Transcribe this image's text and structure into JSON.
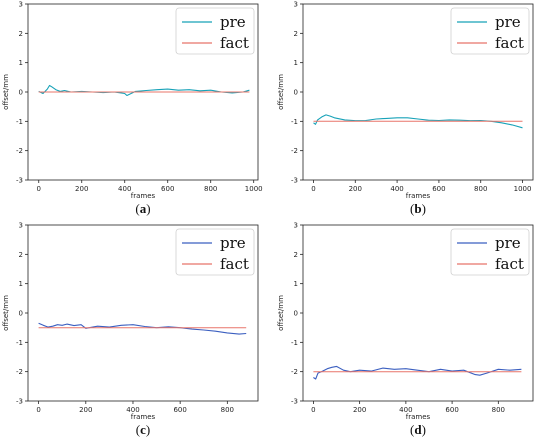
{
  "chart_data": [
    {
      "type": "line",
      "caption_letter": "a",
      "xlabel": "frames",
      "ylabel": "offset/mm",
      "xlim": [
        -50,
        1020
      ],
      "ylim": [
        -3,
        3
      ],
      "xticks": [
        0,
        200,
        400,
        600,
        800,
        1000
      ],
      "yticks": [
        -3,
        -2,
        -1,
        0,
        1,
        2,
        3
      ],
      "legend_position": "top-right",
      "series": [
        {
          "name": "pre",
          "color": "#17a2b8",
          "x": [
            0,
            20,
            40,
            50,
            60,
            80,
            100,
            120,
            150,
            200,
            250,
            300,
            350,
            400,
            410,
            450,
            500,
            550,
            600,
            650,
            700,
            750,
            800,
            850,
            900,
            950,
            980
          ],
          "y": [
            0.02,
            -0.05,
            0.1,
            0.22,
            0.18,
            0.08,
            0.02,
            0.05,
            0.0,
            0.02,
            0.0,
            -0.02,
            0.0,
            -0.05,
            -0.12,
            0.02,
            0.05,
            0.08,
            0.1,
            0.06,
            0.08,
            0.04,
            0.06,
            0.0,
            -0.03,
            0.0,
            0.06
          ]
        },
        {
          "name": "fact",
          "color": "#e8756a",
          "x": [
            0,
            980
          ],
          "y": [
            0,
            0
          ]
        }
      ]
    },
    {
      "type": "line",
      "caption_letter": "b",
      "xlabel": "frames",
      "ylabel": "offset/mm",
      "xlim": [
        -50,
        1050
      ],
      "ylim": [
        -3,
        3
      ],
      "xticks": [
        0,
        200,
        400,
        600,
        800,
        1000
      ],
      "yticks": [
        -3,
        -2,
        -1,
        0,
        1,
        2,
        3
      ],
      "legend_position": "top-right",
      "series": [
        {
          "name": "pre",
          "color": "#17a2b8",
          "x": [
            0,
            10,
            20,
            40,
            60,
            80,
            100,
            150,
            200,
            250,
            300,
            350,
            400,
            450,
            500,
            550,
            600,
            650,
            700,
            750,
            800,
            850,
            900,
            950,
            1000
          ],
          "y": [
            -1.05,
            -1.1,
            -0.95,
            -0.85,
            -0.78,
            -0.82,
            -0.88,
            -0.95,
            -0.98,
            -0.97,
            -0.92,
            -0.9,
            -0.88,
            -0.88,
            -0.92,
            -0.96,
            -0.97,
            -0.95,
            -0.96,
            -0.98,
            -0.97,
            -1.0,
            -1.05,
            -1.12,
            -1.22
          ]
        },
        {
          "name": "fact",
          "color": "#e8756a",
          "x": [
            0,
            1000
          ],
          "y": [
            -1,
            -1
          ]
        }
      ]
    },
    {
      "type": "line",
      "caption_letter": "c",
      "xlabel": "frames",
      "ylabel": "offset/mm",
      "xlim": [
        -45,
        930
      ],
      "ylim": [
        -3,
        3
      ],
      "xticks": [
        0,
        200,
        400,
        600,
        800
      ],
      "yticks": [
        -3,
        -2,
        -1,
        0,
        1,
        2,
        3
      ],
      "legend_position": "top-right",
      "series": [
        {
          "name": "pre",
          "color": "#3b5fc0",
          "x": [
            0,
            20,
            40,
            60,
            80,
            100,
            120,
            150,
            180,
            200,
            250,
            300,
            350,
            400,
            450,
            500,
            550,
            600,
            650,
            700,
            750,
            800,
            850,
            880
          ],
          "y": [
            -0.35,
            -0.42,
            -0.48,
            -0.45,
            -0.4,
            -0.42,
            -0.38,
            -0.43,
            -0.4,
            -0.52,
            -0.45,
            -0.48,
            -0.42,
            -0.4,
            -0.46,
            -0.5,
            -0.47,
            -0.5,
            -0.55,
            -0.58,
            -0.62,
            -0.68,
            -0.72,
            -0.7
          ]
        },
        {
          "name": "fact",
          "color": "#e8756a",
          "x": [
            0,
            880
          ],
          "y": [
            -0.5,
            -0.5
          ]
        }
      ]
    },
    {
      "type": "line",
      "caption_letter": "d",
      "xlabel": "frames",
      "ylabel": "offset/mm",
      "xlim": [
        -45,
        950
      ],
      "ylim": [
        -3,
        3
      ],
      "xticks": [
        0,
        200,
        400,
        600,
        800
      ],
      "yticks": [
        -3,
        -2,
        -1,
        0,
        1,
        2,
        3
      ],
      "legend_position": "top-right",
      "series": [
        {
          "name": "pre",
          "color": "#3b5fc0",
          "x": [
            0,
            10,
            20,
            40,
            60,
            80,
            100,
            130,
            160,
            200,
            250,
            300,
            350,
            400,
            450,
            500,
            550,
            600,
            650,
            700,
            720,
            750,
            800,
            850,
            900
          ],
          "y": [
            -2.2,
            -2.25,
            -2.05,
            -1.98,
            -1.9,
            -1.85,
            -1.82,
            -1.95,
            -2.0,
            -1.95,
            -1.98,
            -1.88,
            -1.92,
            -1.9,
            -1.95,
            -2.0,
            -1.92,
            -1.98,
            -1.95,
            -2.1,
            -2.12,
            -2.05,
            -1.92,
            -1.95,
            -1.92
          ]
        },
        {
          "name": "fact",
          "color": "#e8756a",
          "x": [
            0,
            900
          ],
          "y": [
            -2,
            -2
          ]
        }
      ]
    }
  ]
}
